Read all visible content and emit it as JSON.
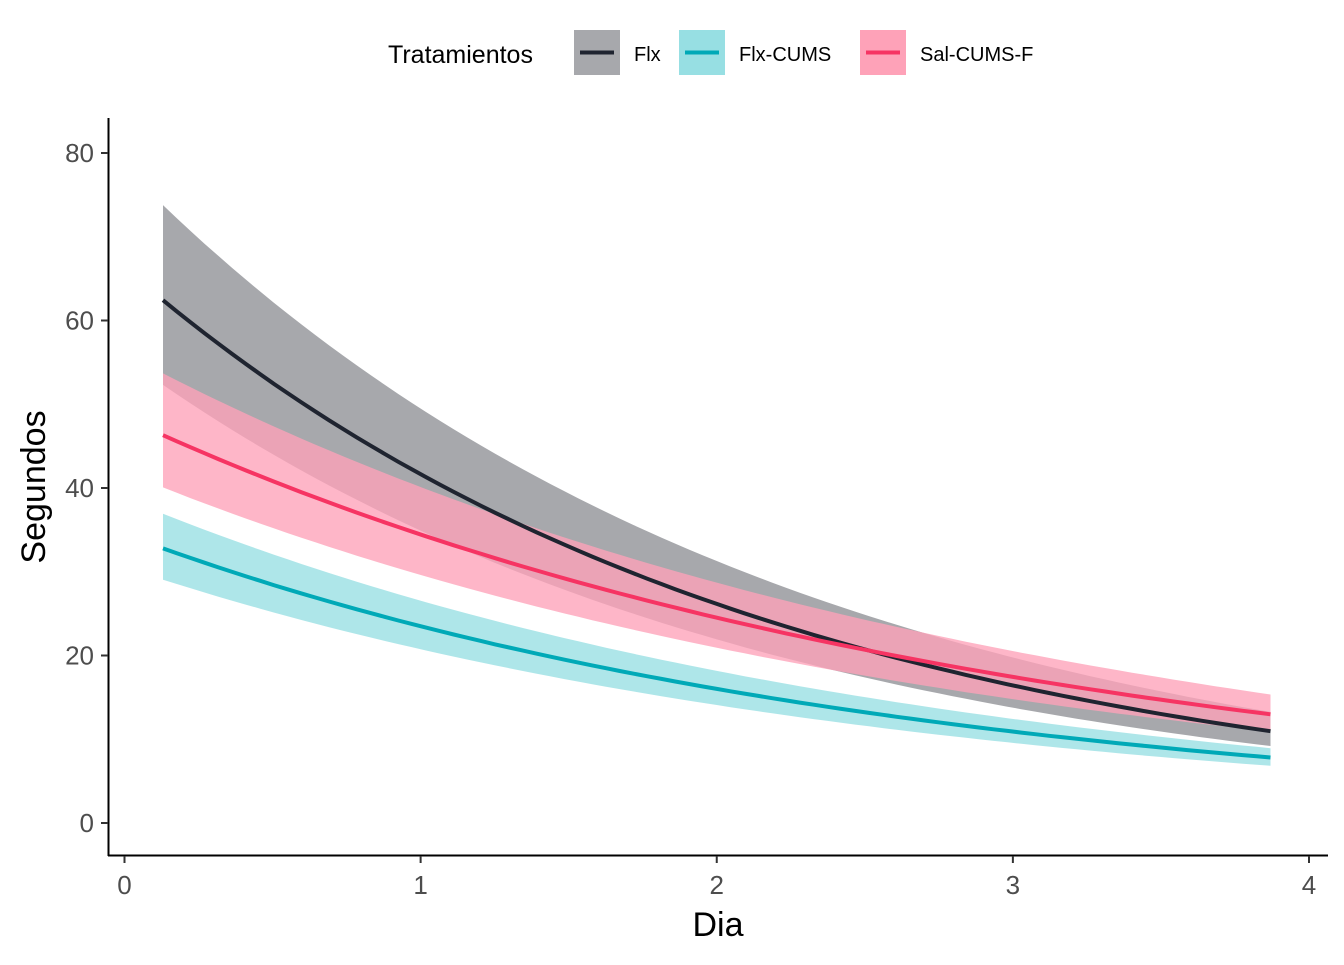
{
  "chart_data": {
    "type": "line",
    "xlabel": "Dia",
    "ylabel": "Segundos",
    "xlim": [
      -0.05,
      4.08
    ],
    "ylim": [
      -4,
      84
    ],
    "xticks": [
      0,
      1,
      2,
      3,
      4
    ],
    "yticks": [
      0,
      20,
      40,
      60,
      80
    ],
    "grid": false,
    "legend": {
      "title": "Tratamientos",
      "position": "top",
      "entries": [
        "Flx",
        "Flx-CUMS",
        "Sal-CUMS-F"
      ]
    },
    "x": [
      0.13,
      1.0,
      2.0,
      3.0,
      3.87
    ],
    "series": [
      {
        "name": "Flx",
        "color": "#1f2430",
        "fill": "#a7a8ac",
        "values": [
          62.2,
          41.9,
          26.2,
          16.3,
          11.0
        ],
        "lower": [
          51.5,
          35.4,
          21.9,
          14.1,
          9.0
        ],
        "upper": [
          75.8,
          48.9,
          30.3,
          19.6,
          13.6
        ]
      },
      {
        "name": "Flx-CUMS",
        "color": "#00a9b7",
        "fill": "#97dfe3",
        "values": [
          32.6,
          23.6,
          16.1,
          10.9,
          7.8
        ],
        "lower": [
          28.2,
          21.1,
          14.4,
          9.8,
          6.6
        ],
        "upper": [
          37.6,
          26.4,
          17.9,
          12.1,
          9.2
        ]
      },
      {
        "name": "Sal-CUMS-F",
        "color": "#f63463",
        "fill": "#fea2b8",
        "values": [
          46.2,
          34.6,
          24.5,
          17.4,
          13.0
        ],
        "lower": [
          38.8,
          30.0,
          21.6,
          15.2,
          10.5
        ],
        "upper": [
          55.0,
          39.9,
          27.9,
          20.0,
          15.9
        ]
      }
    ]
  }
}
